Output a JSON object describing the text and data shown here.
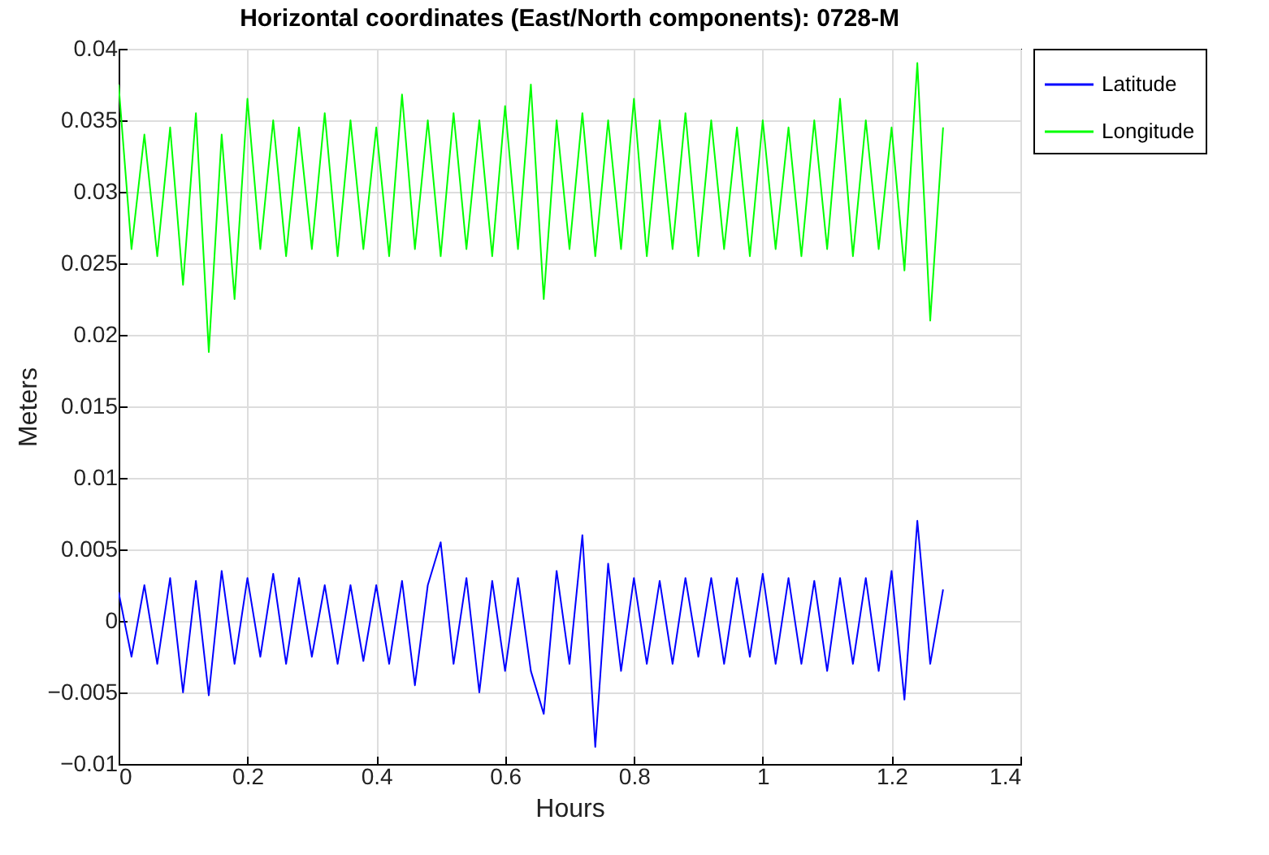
{
  "chart_data": {
    "type": "line",
    "title": "Horizontal coordinates (East/North components): 0728-M",
    "xlabel": "Hours",
    "ylabel": "Meters",
    "x": [
      0,
      0.02,
      0.04,
      0.06,
      0.08,
      0.1,
      0.12,
      0.14,
      0.16,
      0.18,
      0.2,
      0.22,
      0.24,
      0.26,
      0.28,
      0.3,
      0.32,
      0.34,
      0.36,
      0.38,
      0.4,
      0.42,
      0.44,
      0.46,
      0.48,
      0.5,
      0.52,
      0.54,
      0.56,
      0.58,
      0.6,
      0.62,
      0.64,
      0.66,
      0.68,
      0.7,
      0.72,
      0.74,
      0.76,
      0.78,
      0.8,
      0.82,
      0.84,
      0.86,
      0.88,
      0.9,
      0.92,
      0.94,
      0.96,
      0.98,
      1,
      1.02,
      1.04,
      1.06,
      1.08,
      1.1,
      1.12,
      1.14,
      1.16,
      1.18,
      1.2,
      1.22,
      1.24,
      1.26,
      1.28
    ],
    "series": [
      {
        "name": "Latitude",
        "color": "#0000ff",
        "values": [
          0.002,
          -0.0025,
          0.0025,
          -0.003,
          0.003,
          -0.005,
          0.0028,
          -0.0052,
          0.0035,
          -0.003,
          0.003,
          -0.0025,
          0.0033,
          -0.003,
          0.003,
          -0.0025,
          0.0025,
          -0.003,
          0.0025,
          -0.0028,
          0.0025,
          -0.003,
          0.0028,
          -0.0045,
          0.0025,
          0.0055,
          -0.003,
          0.003,
          -0.005,
          0.0028,
          -0.0035,
          0.003,
          -0.0035,
          -0.0065,
          0.0035,
          -0.003,
          0.006,
          -0.0088,
          0.004,
          -0.0035,
          0.003,
          -0.003,
          0.0028,
          -0.003,
          0.003,
          -0.0025,
          0.003,
          -0.003,
          0.003,
          -0.0025,
          0.0033,
          -0.003,
          0.003,
          -0.003,
          0.0028,
          -0.0035,
          0.003,
          -0.003,
          0.003,
          -0.0035,
          0.0035,
          -0.0055,
          0.007,
          -0.003,
          0.0022
        ]
      },
      {
        "name": "Longitude",
        "color": "#00ff00",
        "values": [
          0.0375,
          0.026,
          0.034,
          0.0255,
          0.0345,
          0.0235,
          0.0355,
          0.0188,
          0.034,
          0.0225,
          0.0365,
          0.026,
          0.035,
          0.0255,
          0.0345,
          0.026,
          0.0355,
          0.0255,
          0.035,
          0.026,
          0.0345,
          0.0255,
          0.0368,
          0.026,
          0.035,
          0.0255,
          0.0355,
          0.026,
          0.035,
          0.0255,
          0.036,
          0.026,
          0.0375,
          0.0225,
          0.035,
          0.026,
          0.0355,
          0.0255,
          0.035,
          0.026,
          0.0365,
          0.0255,
          0.035,
          0.026,
          0.0355,
          0.0255,
          0.035,
          0.026,
          0.0345,
          0.0255,
          0.035,
          0.026,
          0.0345,
          0.0255,
          0.035,
          0.026,
          0.0365,
          0.0255,
          0.035,
          0.026,
          0.0345,
          0.0245,
          0.039,
          0.021,
          0.0345
        ]
      }
    ],
    "xlim": [
      0,
      1.4
    ],
    "xticks": [
      0,
      0.2,
      0.4,
      0.6,
      0.8,
      1,
      1.2,
      1.4
    ],
    "ylim": [
      -0.01,
      0.04
    ],
    "yticks": [
      -0.01,
      -0.005,
      0,
      0.005,
      0.01,
      0.015,
      0.02,
      0.025,
      0.03,
      0.035,
      0.04
    ],
    "grid": true,
    "legend": "right",
    "line_style": "solid",
    "marker": "none"
  }
}
